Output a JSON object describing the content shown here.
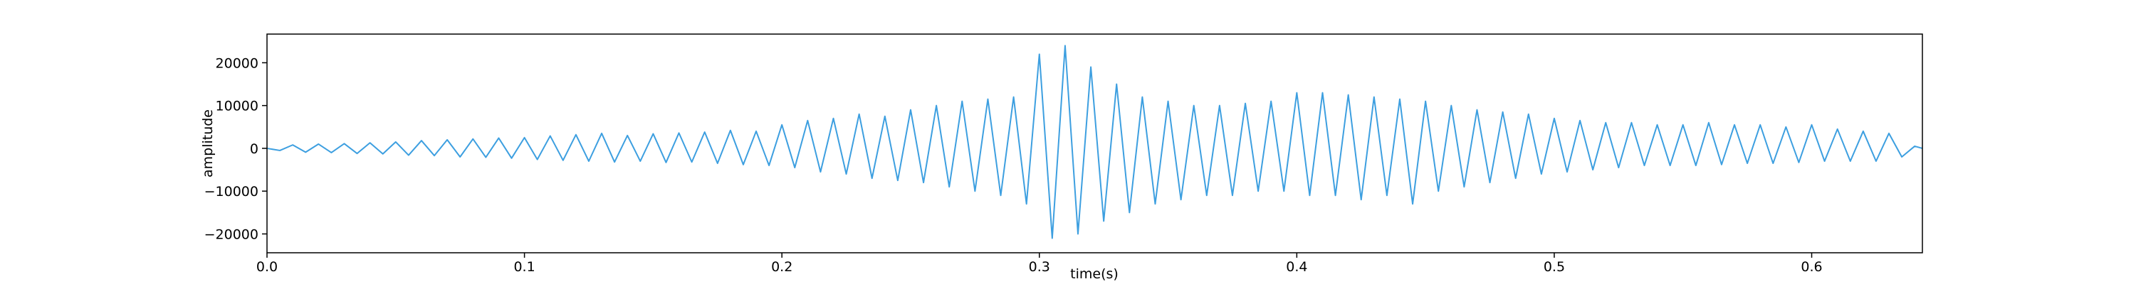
{
  "chart_data": {
    "type": "line",
    "xlabel": "time(s)",
    "ylabel": "amplitude",
    "color": "#3d9fe0",
    "x": [
      0,
      0.005,
      0.01,
      0.015,
      0.02,
      0.025,
      0.03,
      0.035,
      0.04,
      0.045,
      0.05,
      0.055,
      0.06,
      0.065,
      0.07,
      0.075,
      0.08,
      0.085,
      0.09,
      0.095,
      0.1,
      0.105,
      0.11,
      0.115,
      0.12,
      0.125,
      0.13,
      0.135,
      0.14,
      0.145,
      0.15,
      0.155,
      0.16,
      0.165,
      0.17,
      0.175,
      0.18,
      0.185,
      0.19,
      0.195,
      0.2,
      0.205,
      0.21,
      0.215,
      0.22,
      0.225,
      0.23,
      0.235,
      0.24,
      0.245,
      0.25,
      0.255,
      0.26,
      0.265,
      0.27,
      0.275,
      0.28,
      0.285,
      0.29,
      0.295,
      0.3,
      0.305,
      0.31,
      0.315,
      0.32,
      0.325,
      0.33,
      0.335,
      0.34,
      0.345,
      0.35,
      0.355,
      0.36,
      0.365,
      0.37,
      0.375,
      0.38,
      0.385,
      0.39,
      0.395,
      0.4,
      0.405,
      0.41,
      0.415,
      0.42,
      0.425,
      0.43,
      0.435,
      0.44,
      0.445,
      0.45,
      0.455,
      0.46,
      0.465,
      0.47,
      0.475,
      0.48,
      0.485,
      0.49,
      0.495,
      0.5,
      0.505,
      0.51,
      0.515,
      0.52,
      0.525,
      0.53,
      0.535,
      0.54,
      0.545,
      0.55,
      0.555,
      0.56,
      0.565,
      0.57,
      0.575,
      0.58,
      0.585,
      0.59,
      0.595,
      0.6,
      0.605,
      0.61,
      0.615,
      0.62,
      0.625,
      0.63,
      0.635,
      0.64,
      0.643
    ],
    "values": [
      0,
      -500,
      800,
      -900,
      1000,
      -1000,
      1100,
      -1200,
      1300,
      -1300,
      1500,
      -1600,
      1800,
      -1700,
      2000,
      -2000,
      2200,
      -2100,
      2400,
      -2300,
      2500,
      -2600,
      2900,
      -2800,
      3200,
      -3000,
      3500,
      -3200,
      3000,
      -3000,
      3400,
      -3300,
      3600,
      -3200,
      3800,
      -3500,
      4200,
      -3800,
      4000,
      -4000,
      5500,
      -4500,
      6500,
      -5500,
      7000,
      -6000,
      8000,
      -7000,
      7500,
      -7500,
      9000,
      -8000,
      10000,
      -9000,
      11000,
      -10000,
      11500,
      -11000,
      12000,
      -13000,
      22000,
      -21000,
      24000,
      -20000,
      19000,
      -17000,
      15000,
      -15000,
      12000,
      -13000,
      11000,
      -12000,
      10000,
      -11000,
      10000,
      -11000,
      10500,
      -10000,
      11000,
      -10000,
      13000,
      -11000,
      13000,
      -11000,
      12500,
      -12000,
      12000,
      -11000,
      11500,
      -13000,
      11000,
      -10000,
      10000,
      -9000,
      9000,
      -8000,
      8500,
      -7000,
      8000,
      -6000,
      7000,
      -5500,
      6500,
      -5000,
      6000,
      -4500,
      6000,
      -4000,
      5500,
      -4000,
      5500,
      -4000,
      6000,
      -3800,
      5500,
      -3500,
      5500,
      -3500,
      5000,
      -3300,
      5500,
      -3000,
      4500,
      -3000,
      4000,
      -3000,
      3500,
      -2000,
      500,
      0
    ],
    "xlim": [
      0,
      0.643
    ],
    "ylim": [
      -24400,
      26700
    ],
    "xticks": [
      {
        "value": 0,
        "label": "0.0"
      },
      0.1,
      0.2,
      0.3,
      0.4,
      0.5,
      0.6
    ],
    "yticks": [
      {
        "value": -20000,
        "label": "−20000"
      },
      {
        "value": -10000,
        "label": "−10000"
      },
      0,
      10000,
      20000
    ]
  }
}
